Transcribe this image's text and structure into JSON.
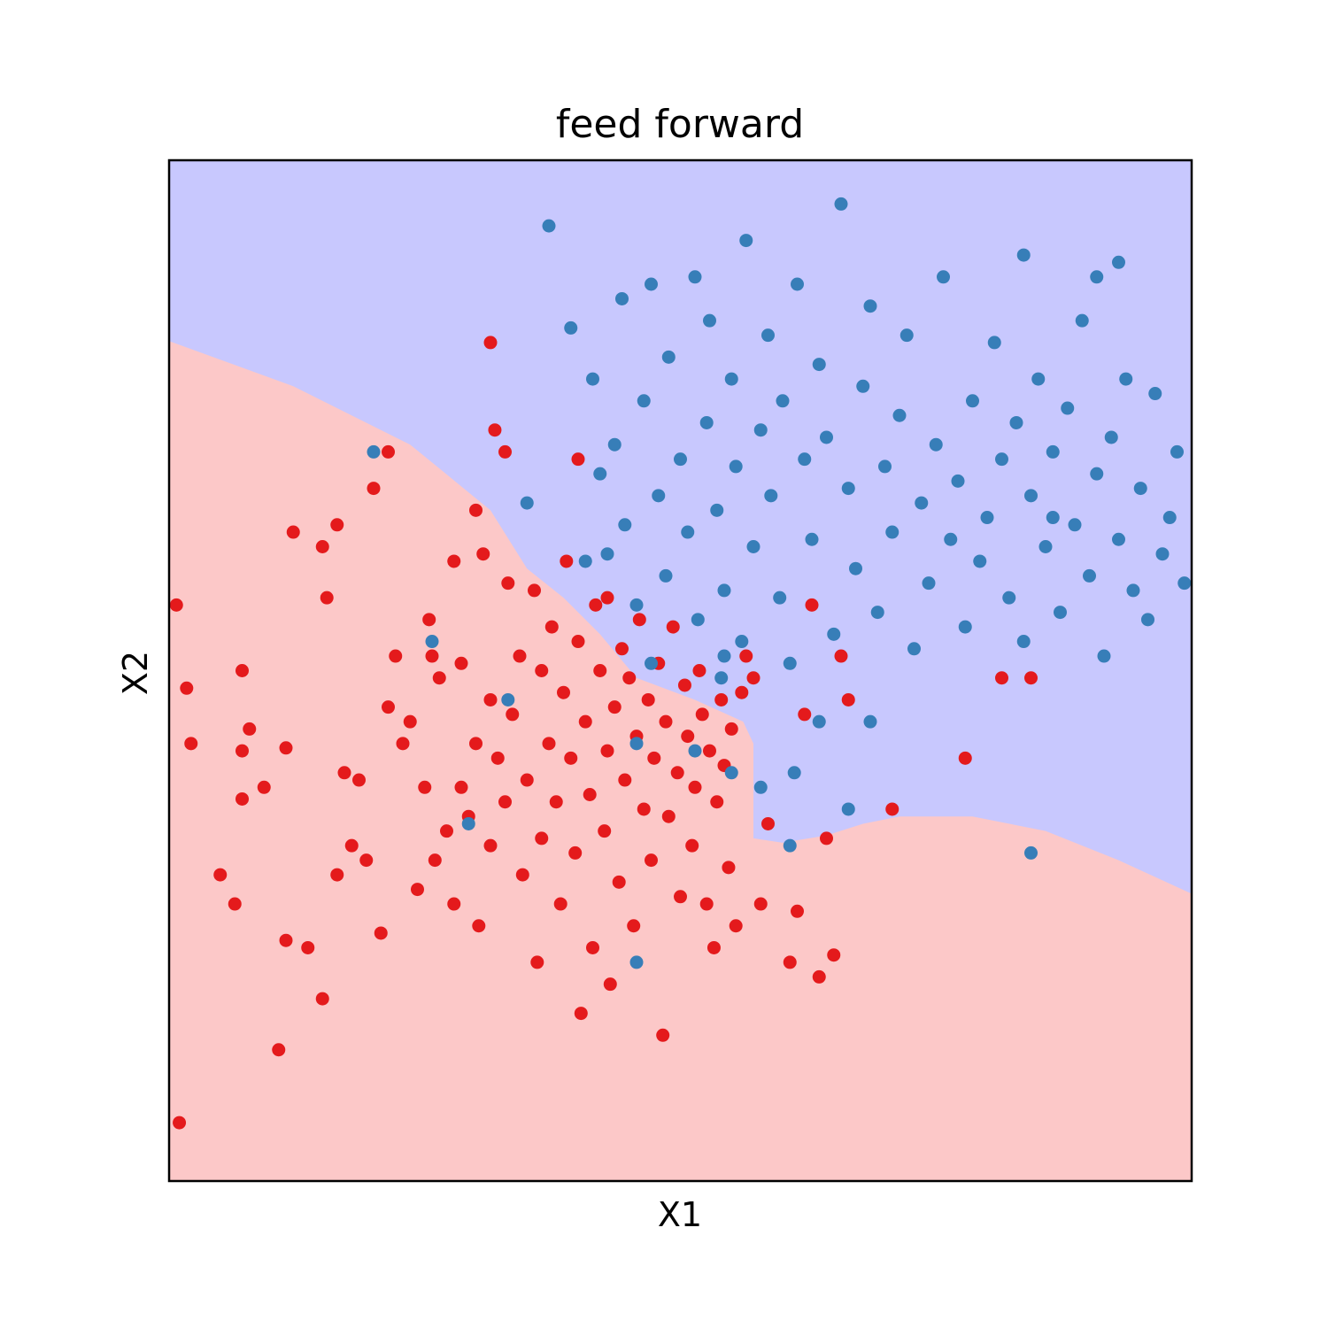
{
  "chart_data": {
    "type": "scatter",
    "title": "feed forward",
    "xlabel": "X1",
    "ylabel": "X2",
    "xlim": [
      -3.5,
      3.5
    ],
    "ylim": [
      -3.5,
      3.5
    ],
    "ticks_visible": false,
    "grid": false,
    "legend": "none",
    "region_colors": {
      "class_0": "#fcc8c8",
      "class_1": "#c8c8fe"
    },
    "decision_boundary": [
      [
        -3.5,
        2.26
      ],
      [
        -2.65,
        1.95
      ],
      [
        -1.85,
        1.55
      ],
      [
        -1.3,
        1.1
      ],
      [
        -1.05,
        0.7
      ],
      [
        -0.8,
        0.5
      ],
      [
        -0.55,
        0.25
      ],
      [
        -0.3,
        -0.05
      ],
      [
        0.1,
        -0.2
      ],
      [
        0.43,
        -0.35
      ],
      [
        0.5,
        -0.5
      ],
      [
        0.5,
        -1.15
      ],
      [
        0.7,
        -1.18
      ],
      [
        1.0,
        -1.13
      ],
      [
        1.25,
        -1.05
      ],
      [
        1.5,
        -1.0
      ],
      [
        2.0,
        -1.0
      ],
      [
        2.5,
        -1.1
      ],
      [
        3.0,
        -1.3
      ],
      [
        3.5,
        -1.53
      ]
    ],
    "series": [
      {
        "color": "#e41a1c",
        "points": [
          [
            -3.45,
            0.45
          ],
          [
            -3.43,
            -3.1
          ],
          [
            -3.38,
            -0.12
          ],
          [
            -3.35,
            -0.5
          ],
          [
            -3.15,
            -1.4
          ],
          [
            -3.05,
            -1.6
          ],
          [
            -3.0,
            0.0
          ],
          [
            -3.0,
            -0.55
          ],
          [
            -3.0,
            -0.88
          ],
          [
            -2.95,
            -0.4
          ],
          [
            -2.85,
            -0.8
          ],
          [
            -2.75,
            -2.6
          ],
          [
            -2.7,
            -1.85
          ],
          [
            -2.7,
            -0.53
          ],
          [
            -2.65,
            0.95
          ],
          [
            -2.55,
            -1.9
          ],
          [
            -2.45,
            -2.25
          ],
          [
            -2.45,
            0.85
          ],
          [
            -2.42,
            0.5
          ],
          [
            -2.35,
            -1.4
          ],
          [
            -2.3,
            -0.7
          ],
          [
            -2.25,
            -1.2
          ],
          [
            -2.2,
            -0.75
          ],
          [
            -2.15,
            -1.3
          ],
          [
            -2.1,
            1.25
          ],
          [
            -2.05,
            -1.8
          ],
          [
            -2.0,
            -0.25
          ],
          [
            -1.95,
            0.1
          ],
          [
            -1.9,
            -0.5
          ],
          [
            -1.85,
            -0.35
          ],
          [
            -1.8,
            -1.5
          ],
          [
            -1.75,
            -0.8
          ],
          [
            -1.72,
            0.35
          ],
          [
            -1.7,
            0.1
          ],
          [
            -1.68,
            -1.3
          ],
          [
            -1.65,
            -0.05
          ],
          [
            -1.6,
            -1.1
          ],
          [
            -1.55,
            -1.6
          ],
          [
            -1.55,
            0.75
          ],
          [
            -1.5,
            -0.8
          ],
          [
            -1.5,
            0.05
          ],
          [
            -1.45,
            -1.0
          ],
          [
            -1.4,
            -0.5
          ],
          [
            -1.4,
            1.1
          ],
          [
            -1.38,
            -1.75
          ],
          [
            -1.35,
            0.8
          ],
          [
            -1.3,
            -0.2
          ],
          [
            -1.3,
            -1.2
          ],
          [
            -1.27,
            1.65
          ],
          [
            -1.25,
            -0.6
          ],
          [
            -1.2,
            -0.9
          ],
          [
            -1.18,
            0.6
          ],
          [
            -1.15,
            -0.3
          ],
          [
            -1.1,
            0.1
          ],
          [
            -1.08,
            -1.4
          ],
          [
            -1.05,
            -0.75
          ],
          [
            -1.0,
            0.55
          ],
          [
            -0.98,
            -2.0
          ],
          [
            -0.95,
            0.0
          ],
          [
            -0.95,
            -1.15
          ],
          [
            -0.9,
            -0.5
          ],
          [
            -0.88,
            0.3
          ],
          [
            -0.85,
            -0.9
          ],
          [
            -0.82,
            -1.6
          ],
          [
            -0.8,
            -0.15
          ],
          [
            -0.78,
            0.75
          ],
          [
            -0.75,
            -0.6
          ],
          [
            -0.72,
            -1.25
          ],
          [
            -0.7,
            0.2
          ],
          [
            -0.68,
            -2.35
          ],
          [
            -0.65,
            -0.35
          ],
          [
            -0.62,
            -0.85
          ],
          [
            -0.6,
            -1.9
          ],
          [
            -0.58,
            0.45
          ],
          [
            -0.55,
            0.0
          ],
          [
            -0.52,
            -1.1
          ],
          [
            -0.5,
            -0.55
          ],
          [
            -0.48,
            -2.15
          ],
          [
            -0.45,
            -0.25
          ],
          [
            -0.42,
            -1.45
          ],
          [
            -0.4,
            0.15
          ],
          [
            -0.38,
            -0.75
          ],
          [
            -0.35,
            -0.05
          ],
          [
            -0.32,
            -1.75
          ],
          [
            -0.3,
            -0.45
          ],
          [
            -0.28,
            0.35
          ],
          [
            -0.25,
            -0.95
          ],
          [
            -0.22,
            -0.2
          ],
          [
            -0.2,
            -1.3
          ],
          [
            -0.18,
            -0.6
          ],
          [
            -0.15,
            0.05
          ],
          [
            -0.12,
            -2.5
          ],
          [
            -0.1,
            -0.35
          ],
          [
            -0.08,
            -1.0
          ],
          [
            -0.05,
            0.3
          ],
          [
            -0.02,
            -0.7
          ],
          [
            0.0,
            -1.55
          ],
          [
            0.03,
            -0.1
          ],
          [
            0.05,
            -0.45
          ],
          [
            0.08,
            -1.2
          ],
          [
            0.1,
            -0.8
          ],
          [
            0.13,
            0.0
          ],
          [
            0.15,
            -0.3
          ],
          [
            0.18,
            -1.6
          ],
          [
            0.2,
            -0.55
          ],
          [
            0.23,
            -1.9
          ],
          [
            0.25,
            -0.9
          ],
          [
            0.28,
            -0.2
          ],
          [
            0.3,
            -0.65
          ],
          [
            0.33,
            -1.35
          ],
          [
            0.35,
            -0.4
          ],
          [
            0.38,
            -1.75
          ],
          [
            0.42,
            -0.15
          ],
          [
            0.45,
            0.1
          ],
          [
            0.5,
            -0.05
          ],
          [
            0.55,
            -1.6
          ],
          [
            0.6,
            -1.05
          ],
          [
            0.75,
            -2.0
          ],
          [
            0.8,
            -1.65
          ],
          [
            0.85,
            -0.3
          ],
          [
            0.9,
            0.45
          ],
          [
            0.95,
            -2.1
          ],
          [
            1.0,
            -1.15
          ],
          [
            1.05,
            -1.95
          ],
          [
            1.15,
            -0.2
          ],
          [
            1.45,
            -0.95
          ],
          [
            1.95,
            -0.6
          ],
          [
            2.2,
            -0.05
          ],
          [
            2.4,
            -0.05
          ],
          [
            1.1,
            0.1
          ],
          [
            -1.3,
            2.25
          ],
          [
            -1.2,
            1.5
          ],
          [
            -0.5,
            0.5
          ],
          [
            -0.7,
            1.45
          ],
          [
            -2.35,
            1.0
          ],
          [
            -2.0,
            1.5
          ]
        ]
      },
      {
        "color": "#377eb8",
        "points": [
          [
            -0.9,
            3.05
          ],
          [
            -0.75,
            2.35
          ],
          [
            -0.6,
            2.0
          ],
          [
            -0.55,
            1.35
          ],
          [
            -0.5,
            0.8
          ],
          [
            -0.45,
            1.55
          ],
          [
            -0.4,
            2.55
          ],
          [
            -0.38,
            1.0
          ],
          [
            -0.3,
            0.45
          ],
          [
            -0.25,
            1.85
          ],
          [
            -0.2,
            2.65
          ],
          [
            -0.15,
            1.2
          ],
          [
            -0.1,
            0.65
          ],
          [
            -0.08,
            2.15
          ],
          [
            0.0,
            1.45
          ],
          [
            0.05,
            0.95
          ],
          [
            0.1,
            2.7
          ],
          [
            0.12,
            0.35
          ],
          [
            0.18,
            1.7
          ],
          [
            0.2,
            2.4
          ],
          [
            0.25,
            1.1
          ],
          [
            0.3,
            0.55
          ],
          [
            0.35,
            2.0
          ],
          [
            0.38,
            1.4
          ],
          [
            0.42,
            0.2
          ],
          [
            0.45,
            2.95
          ],
          [
            0.5,
            0.85
          ],
          [
            0.55,
            1.65
          ],
          [
            0.6,
            2.3
          ],
          [
            0.62,
            1.2
          ],
          [
            0.68,
            0.5
          ],
          [
            0.7,
            1.85
          ],
          [
            0.75,
            0.05
          ],
          [
            0.8,
            2.65
          ],
          [
            0.85,
            1.45
          ],
          [
            0.9,
            0.9
          ],
          [
            0.95,
            2.1
          ],
          [
            1.0,
            1.6
          ],
          [
            1.05,
            0.25
          ],
          [
            1.1,
            3.2
          ],
          [
            1.15,
            1.25
          ],
          [
            1.2,
            0.7
          ],
          [
            1.25,
            1.95
          ],
          [
            1.3,
            2.5
          ],
          [
            1.35,
            0.4
          ],
          [
            1.4,
            1.4
          ],
          [
            1.45,
            0.95
          ],
          [
            1.5,
            1.75
          ],
          [
            1.55,
            2.3
          ],
          [
            1.6,
            0.15
          ],
          [
            1.65,
            1.15
          ],
          [
            1.7,
            0.6
          ],
          [
            1.75,
            1.55
          ],
          [
            1.8,
            2.7
          ],
          [
            1.85,
            0.9
          ],
          [
            1.9,
            1.3
          ],
          [
            1.95,
            0.3
          ],
          [
            2.0,
            1.85
          ],
          [
            2.05,
            0.75
          ],
          [
            2.1,
            1.05
          ],
          [
            2.15,
            2.25
          ],
          [
            2.2,
            1.45
          ],
          [
            2.25,
            0.5
          ],
          [
            2.3,
            1.7
          ],
          [
            2.35,
            0.2
          ],
          [
            2.4,
            1.2
          ],
          [
            2.45,
            2.0
          ],
          [
            2.5,
            0.85
          ],
          [
            2.55,
            1.5
          ],
          [
            2.6,
            0.4
          ],
          [
            2.65,
            1.8
          ],
          [
            2.7,
            1.0
          ],
          [
            2.75,
            2.4
          ],
          [
            2.8,
            0.65
          ],
          [
            2.85,
            1.35
          ],
          [
            2.9,
            0.1
          ],
          [
            2.95,
            1.6
          ],
          [
            3.0,
            0.9
          ],
          [
            3.05,
            2.0
          ],
          [
            3.1,
            0.55
          ],
          [
            3.15,
            1.25
          ],
          [
            3.2,
            0.35
          ],
          [
            3.25,
            1.9
          ],
          [
            3.3,
            0.8
          ],
          [
            3.35,
            1.05
          ],
          [
            3.4,
            1.5
          ],
          [
            3.45,
            0.6
          ],
          [
            2.35,
            2.85
          ],
          [
            2.55,
            1.05
          ],
          [
            2.85,
            2.7
          ],
          [
            3.0,
            2.8
          ],
          [
            -2.1,
            1.5
          ],
          [
            -1.7,
            0.2
          ],
          [
            -1.45,
            -1.05
          ],
          [
            -1.18,
            -0.2
          ],
          [
            -1.05,
            1.15
          ],
          [
            -0.65,
            0.75
          ],
          [
            -0.3,
            -0.5
          ],
          [
            0.1,
            -0.55
          ],
          [
            0.28,
            -0.05
          ],
          [
            0.35,
            -0.7
          ],
          [
            0.55,
            -0.8
          ],
          [
            0.78,
            -0.7
          ],
          [
            1.15,
            -0.95
          ],
          [
            2.4,
            -1.25
          ],
          [
            0.75,
            -1.2
          ],
          [
            -0.3,
            -2.0
          ],
          [
            0.3,
            0.1
          ],
          [
            -0.2,
            0.05
          ],
          [
            0.95,
            -0.35
          ],
          [
            1.3,
            -0.35
          ]
        ]
      }
    ]
  }
}
